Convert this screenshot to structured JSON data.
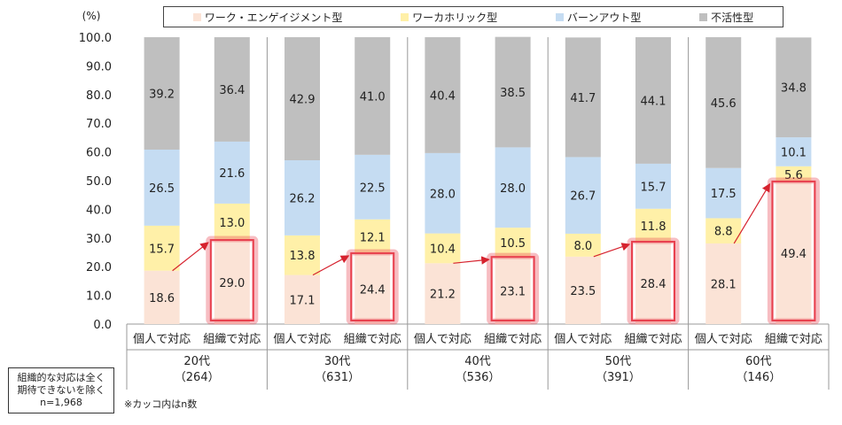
{
  "chart_data": {
    "type": "bar",
    "stacked": true,
    "unit_label": "(%)",
    "ylim": [
      0,
      100
    ],
    "yticks": [
      "0.0",
      "10.0",
      "20.0",
      "30.0",
      "40.0",
      "50.0",
      "60.0",
      "70.0",
      "80.0",
      "90.0",
      "100.0"
    ],
    "groups": [
      {
        "label": "20代",
        "n": "（264）"
      },
      {
        "label": "30代",
        "n": "（631）"
      },
      {
        "label": "40代",
        "n": "（536）"
      },
      {
        "label": "50代",
        "n": "（391）"
      },
      {
        "label": "60代",
        "n": "（146）"
      }
    ],
    "bar_labels": [
      "個人で対応",
      "組織で対応"
    ],
    "series": [
      {
        "name": "ワーク・エンゲイジメント型",
        "color": "#fbe3d6",
        "values": [
          [
            18.6,
            29.0
          ],
          [
            17.1,
            24.4
          ],
          [
            21.2,
            23.1
          ],
          [
            23.5,
            28.4
          ],
          [
            28.1,
            49.4
          ]
        ]
      },
      {
        "name": "ワーカホリック型",
        "color": "#fff0a8",
        "values": [
          [
            15.7,
            13.0
          ],
          [
            13.8,
            12.1
          ],
          [
            10.4,
            10.5
          ],
          [
            8.0,
            11.8
          ],
          [
            8.8,
            5.6
          ]
        ]
      },
      {
        "name": "バーンアウト型",
        "color": "#c5dcf2",
        "values": [
          [
            26.5,
            21.6
          ],
          [
            26.2,
            22.5
          ],
          [
            28.0,
            28.0
          ],
          [
            26.7,
            15.7
          ],
          [
            17.5,
            10.1
          ]
        ]
      },
      {
        "name": "不活性型",
        "color": "#bfbfbf",
        "values": [
          [
            39.2,
            36.4
          ],
          [
            42.9,
            41.0
          ],
          [
            40.4,
            38.5
          ],
          [
            41.7,
            44.1
          ],
          [
            45.6,
            34.8
          ]
        ]
      }
    ],
    "highlight": "組織で対応 ワーク・エンゲイジメント型",
    "highlight_color": "#e8414f",
    "arrow_color": "#d6222e"
  },
  "notes": {
    "box_lines": [
      "組織的な対応は全く",
      "期待できないを除く",
      "n=1,968"
    ],
    "footnote": "※カッコ内はn数"
  }
}
